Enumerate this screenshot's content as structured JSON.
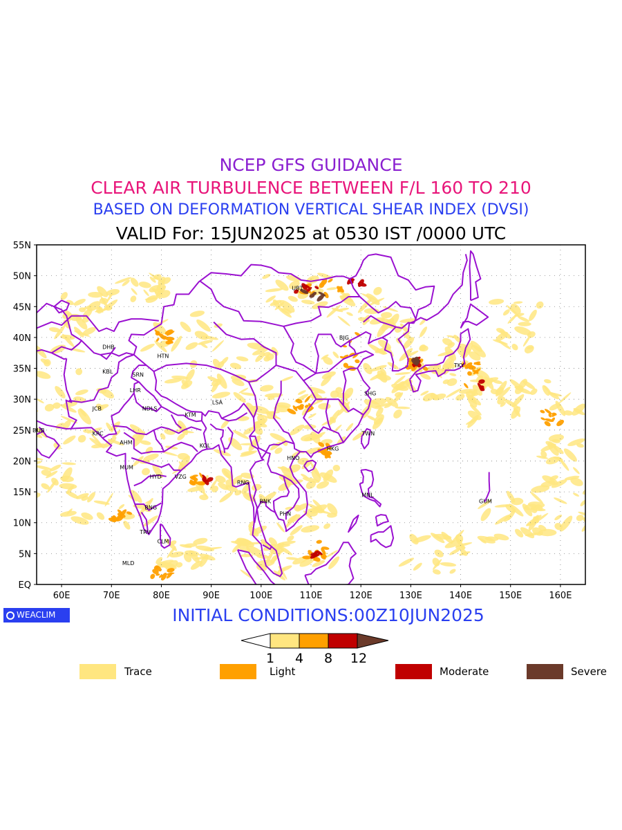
{
  "titles": {
    "line1": "NCEP GFS GUIDANCE",
    "line2": "CLEAR AIR TURBULENCE BETWEEN F/L 160 TO 210",
    "line3": "BASED ON DEFORMATION VERTICAL SHEAR INDEX (DVSI)",
    "line4": "VALID For: 15JUN2025 at 0530 IST /0000 UTC"
  },
  "map": {
    "lon_range": [
      55,
      165
    ],
    "lat_range": [
      0,
      55
    ],
    "lat_labels": [
      "55N",
      "50N",
      "45N",
      "40N",
      "35N",
      "30N",
      "25N",
      "20N",
      "15N",
      "10N",
      "5N",
      "EQ"
    ],
    "lon_labels": [
      "60E",
      "70E",
      "80E",
      "90E",
      "100E",
      "110E",
      "120E",
      "130E",
      "140E",
      "150E",
      "160E"
    ],
    "stations": [
      {
        "code": "UBT",
        "lon": 107,
        "lat": 48
      },
      {
        "code": "BJG",
        "lon": 116.5,
        "lat": 40
      },
      {
        "code": "DHB",
        "lon": 69,
        "lat": 38.5
      },
      {
        "code": "HTN",
        "lon": 80,
        "lat": 37
      },
      {
        "code": "KBL",
        "lon": 69,
        "lat": 34.5
      },
      {
        "code": "SRN",
        "lon": 75,
        "lat": 34
      },
      {
        "code": "LHR",
        "lon": 74.5,
        "lat": 31.5
      },
      {
        "code": "TKY",
        "lon": 139.5,
        "lat": 35.5
      },
      {
        "code": "SHG",
        "lon": 121.5,
        "lat": 31
      },
      {
        "code": "LSA",
        "lon": 91,
        "lat": 29.5
      },
      {
        "code": "JCB",
        "lon": 67,
        "lat": 28.5
      },
      {
        "code": "NDLS",
        "lon": 77,
        "lat": 28.5
      },
      {
        "code": "KTM",
        "lon": 85.5,
        "lat": 27.5
      },
      {
        "code": "DUB",
        "lon": 55,
        "lat": 25
      },
      {
        "code": "KRC",
        "lon": 67,
        "lat": 24.5
      },
      {
        "code": "TWN",
        "lon": 121,
        "lat": 24.5
      },
      {
        "code": "AHM",
        "lon": 72.5,
        "lat": 23
      },
      {
        "code": "KOL",
        "lon": 88.5,
        "lat": 22.5
      },
      {
        "code": "HKG",
        "lon": 114,
        "lat": 22
      },
      {
        "code": "HNO",
        "lon": 106,
        "lat": 20.5
      },
      {
        "code": "MUM",
        "lon": 72.5,
        "lat": 19
      },
      {
        "code": "HYD",
        "lon": 78.5,
        "lat": 17.5
      },
      {
        "code": "VZG",
        "lon": 83.5,
        "lat": 17.5
      },
      {
        "code": "RNG",
        "lon": 96,
        "lat": 16.5
      },
      {
        "code": "MNL",
        "lon": 121,
        "lat": 14.5
      },
      {
        "code": "GUM",
        "lon": 144.5,
        "lat": 13.5
      },
      {
        "code": "BNK",
        "lon": 100.5,
        "lat": 13.5
      },
      {
        "code": "BNG",
        "lon": 77.5,
        "lat": 12.5
      },
      {
        "code": "PHN",
        "lon": 104.5,
        "lat": 11.5
      },
      {
        "code": "TRV",
        "lon": 76.5,
        "lat": 8.5
      },
      {
        "code": "CLM",
        "lon": 80,
        "lat": 7
      },
      {
        "code": "MLD",
        "lon": 73,
        "lat": 3.5
      }
    ],
    "colors": {
      "coastline": "#9a10d0",
      "trace": "#ffe680",
      "light": "#ffa000",
      "moderate": "#c00000",
      "severe": "#6b3a2a"
    }
  },
  "colorbar": {
    "ticks": [
      "1",
      "4",
      "8",
      "12"
    ]
  },
  "initial_conditions": "INITIAL CONDITIONS:00Z10JUN2025",
  "logo_text": "WEACLIM",
  "legend": [
    {
      "label": "Trace",
      "color": "#ffe680"
    },
    {
      "label": "Light",
      "color": "#ffa000"
    },
    {
      "label": "Moderate",
      "color": "#c00000"
    },
    {
      "label": "Severe",
      "color": "#6b3a2a"
    }
  ]
}
